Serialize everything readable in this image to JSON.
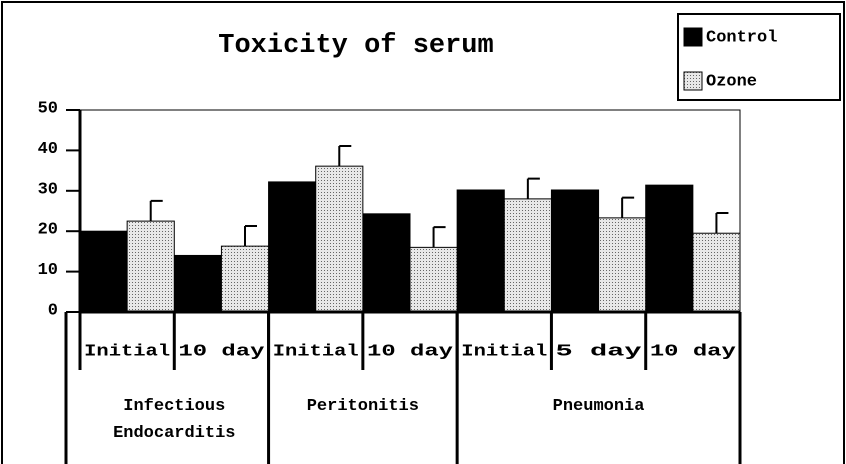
{
  "chart_data": {
    "type": "bar",
    "title": "Toxicity of serum",
    "categories": [
      "Initial",
      "10 day",
      "Initial",
      "10 day",
      "Initial",
      "5 day",
      "10 day"
    ],
    "groups": [
      {
        "label": "Infectious Endocarditis",
        "size": 2
      },
      {
        "label": "Peritonitis",
        "size": 2
      },
      {
        "label": "Pneumonia",
        "size": 3
      }
    ],
    "series": [
      {
        "name": "Control",
        "color": "#000000",
        "values": [
          20,
          14,
          32.2,
          24.3,
          30.2,
          30.2,
          31.4
        ]
      },
      {
        "name": "Ozone",
        "color": "#d9d9d9",
        "pattern": "dots",
        "values": [
          22.5,
          16.3,
          36.1,
          16,
          28,
          23.3,
          19.5
        ],
        "errors": [
          5,
          5,
          5,
          5,
          5,
          5,
          5
        ]
      }
    ],
    "ylim": [
      0,
      50
    ],
    "yticks": [
      0,
      10,
      20,
      30,
      40,
      50
    ],
    "legend": "top-right"
  }
}
